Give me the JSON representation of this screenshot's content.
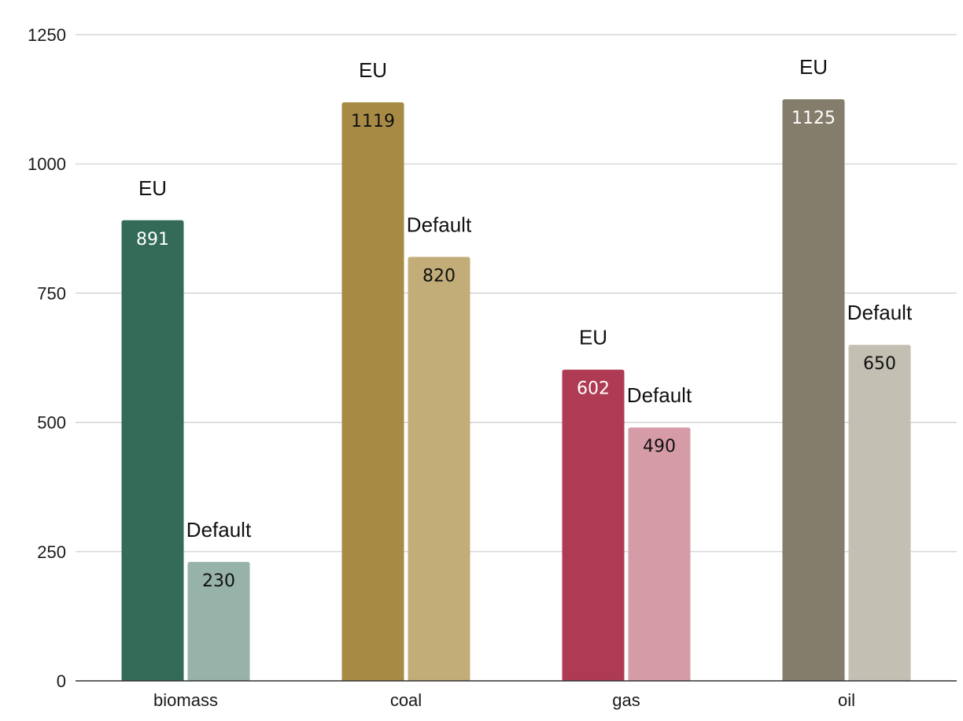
{
  "chart_data": {
    "type": "bar",
    "title": "",
    "xlabel": "",
    "ylabel": "",
    "ylim": [
      0,
      1250
    ],
    "yticks": [
      0,
      250,
      500,
      750,
      1000,
      1250
    ],
    "grid": true,
    "legend": "none",
    "categories": [
      "biomass",
      "coal",
      "gas",
      "oil"
    ],
    "series": [
      {
        "name": "EU",
        "values": [
          891,
          1119,
          602,
          1125
        ]
      },
      {
        "name": "Default",
        "values": [
          230,
          820,
          490,
          650
        ]
      }
    ],
    "colors": {
      "EU": [
        "#336b58",
        "#a78b45",
        "#ae3b53",
        "#857d6b"
      ],
      "Default": [
        "#96b2a9",
        "#c2ad78",
        "#d59ca8",
        "#c3c0b3"
      ]
    },
    "value_label_colors": {
      "EU": [
        "#ffffff",
        "#111111",
        "#ffffff",
        "#ffffff"
      ],
      "Default": [
        "#111111",
        "#111111",
        "#111111",
        "#111111"
      ]
    }
  }
}
